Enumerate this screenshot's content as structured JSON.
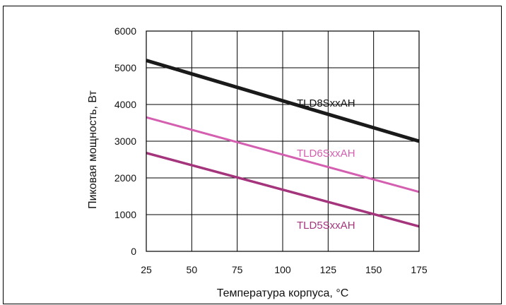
{
  "chart_data": {
    "type": "line",
    "xlabel": "Температура корпуса, °C",
    "ylabel": "Пиковая мощность, Вт",
    "xlim": [
      25,
      175
    ],
    "ylim": [
      0,
      6000
    ],
    "x_ticks": [
      "25",
      "50",
      "75",
      "100",
      "125",
      "150",
      "175"
    ],
    "y_ticks": [
      "0",
      "1000",
      "2000",
      "3000",
      "4000",
      "5000",
      "6000"
    ],
    "grid": true,
    "series": [
      {
        "name": "TLD8SxxAH",
        "color": "#1a1a1a",
        "x": [
          25,
          175
        ],
        "y": [
          5200,
          3000
        ]
      },
      {
        "name": "TLD6SxxAH",
        "color": "#d45fb0",
        "x": [
          25,
          175
        ],
        "y": [
          3650,
          1620
        ]
      },
      {
        "name": "TLD5SxxAH",
        "color": "#a4347c",
        "x": [
          25,
          175
        ],
        "y": [
          2680,
          680
        ]
      }
    ]
  }
}
